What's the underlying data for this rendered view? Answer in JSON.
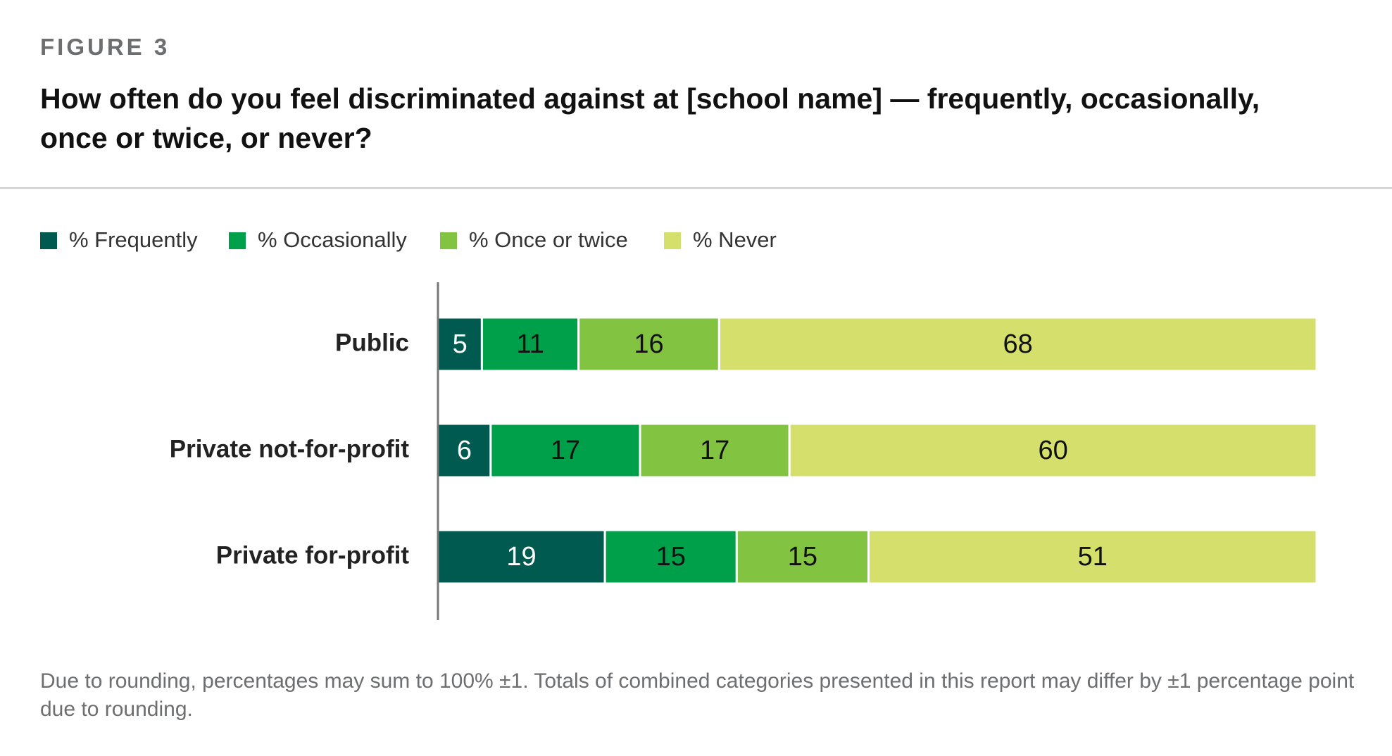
{
  "figure_label": "FIGURE 3",
  "chart_data": {
    "type": "stacked-bar-horizontal",
    "title": "How often do you feel discriminated against at [school name] — frequently, occasionally, once or twice, or never?",
    "categories": [
      "Public",
      "Private not-for-profit",
      "Private for-profit"
    ],
    "series": [
      {
        "name": "% Frequently",
        "color": "#005a50",
        "values": [
          5,
          6,
          19
        ]
      },
      {
        "name": "% Occasionally",
        "color": "#00a04b",
        "values": [
          11,
          17,
          15
        ]
      },
      {
        "name": "% Once or twice",
        "color": "#82c341",
        "values": [
          16,
          17,
          15
        ]
      },
      {
        "name": "% Never",
        "color": "#d4e06b",
        "values": [
          68,
          60,
          51
        ]
      }
    ],
    "xlim": [
      0,
      100
    ],
    "legend": "top-left",
    "note": "Due to rounding, percentages may sum to 100% ±1. Totals of combined categories presented in this report may differ by ±1 percentage point due to rounding."
  }
}
